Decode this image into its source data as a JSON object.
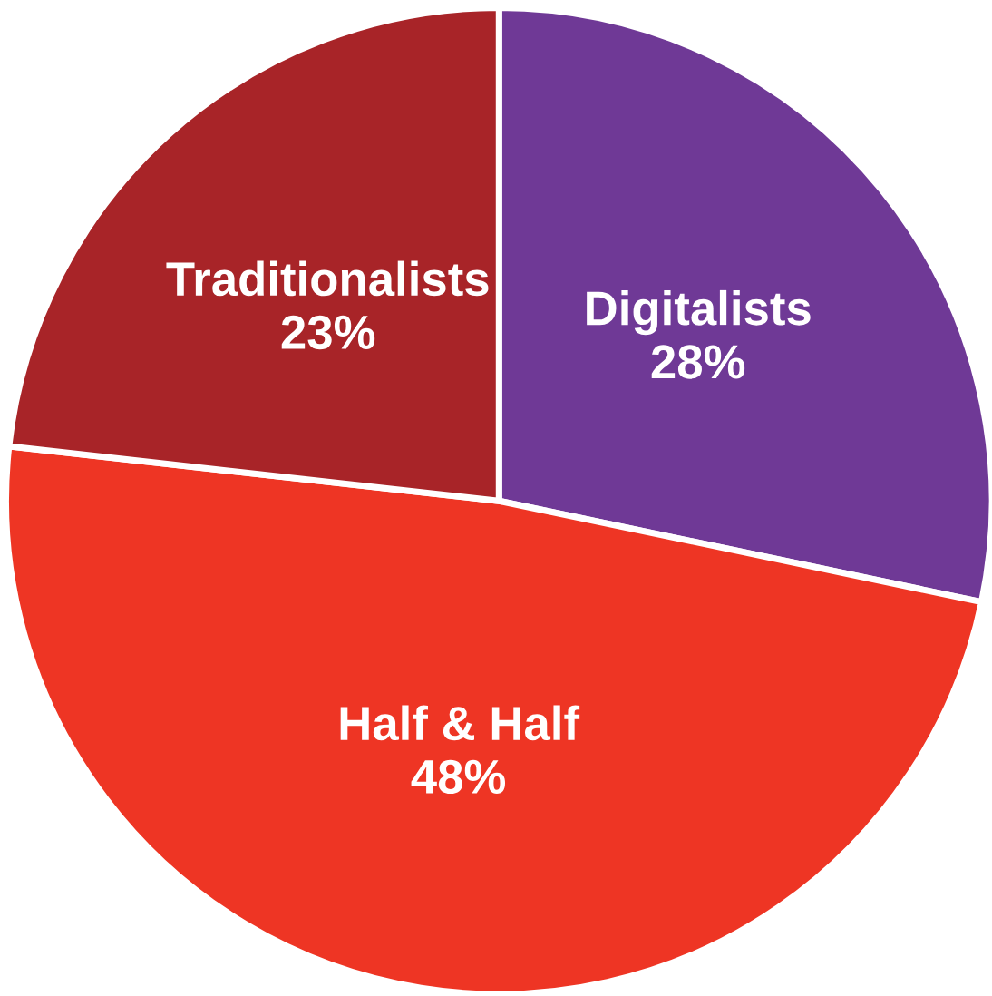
{
  "chart_data": {
    "type": "pie",
    "categories": [
      "Digitalists",
      "Half & Half",
      "Traditionalists"
    ],
    "values": [
      28,
      48,
      23
    ],
    "value_labels": [
      "28%",
      "48%",
      "23%"
    ],
    "colors": [
      "#6f3996",
      "#ee3524",
      "#a82428"
    ],
    "legend": false
  }
}
